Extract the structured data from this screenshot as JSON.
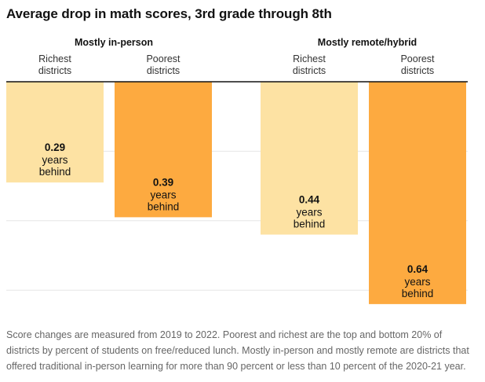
{
  "chart_data": {
    "type": "bar",
    "title": "Average drop in math scores, 3rd grade through 8th",
    "groups": [
      {
        "label": "Mostly in-person",
        "bars": [
          {
            "category": "Richest\ndistricts",
            "value": 0.29,
            "color": "#fde2a3"
          },
          {
            "category": "Poorest\ndistricts",
            "value": 0.39,
            "color": "#fdaa40"
          }
        ]
      },
      {
        "label": "Mostly remote/hybrid",
        "bars": [
          {
            "category": "Richest\ndistricts",
            "value": 0.44,
            "color": "#fde2a3"
          },
          {
            "category": "Poorest\ndistricts",
            "value": 0.64,
            "color": "#fdaa40"
          }
        ]
      }
    ],
    "value_suffix_line1": "years",
    "value_suffix_line2": "behind",
    "ylim": [
      0,
      0.65
    ],
    "gridlines": true
  },
  "footnote": "Score changes are measured from 2019 to 2022. Poorest and richest are the top and bottom 20% of districts by percent of students on free/reduced lunch. Mostly in-person and mostly remote are districts that offered traditional in-person learning for more than 90 percent or less than 10 percent of the 2020-21 year."
}
